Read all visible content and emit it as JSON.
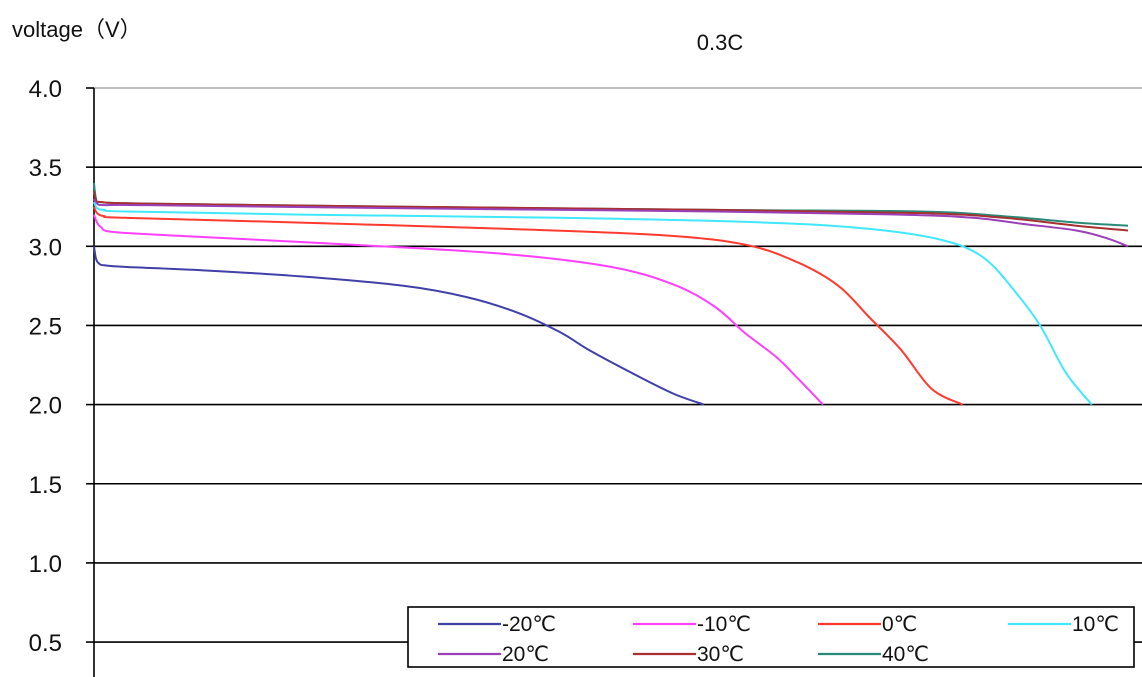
{
  "chart_data": {
    "type": "line",
    "title": "0.3C",
    "ylabel": "voltage（V）",
    "xlabel": "",
    "ylim": [
      0.3,
      4.0
    ],
    "xlim": [
      0,
      100
    ],
    "yticks": [
      4.0,
      3.5,
      3.0,
      2.5,
      2.0,
      1.5,
      1.0,
      0.5
    ],
    "ytick_labels": [
      "4.0",
      "3.5",
      "3.0",
      "2.5",
      "2.0",
      "1.5",
      "1.0",
      "0.5"
    ],
    "grid": "horizontal",
    "legend_position": "bottom-right",
    "series": [
      {
        "name": "-20℃",
        "color": "#4040a8",
        "x": [
          0,
          0.2,
          0.5,
          1,
          3,
          10,
          20,
          30,
          36,
          41,
          45,
          48,
          52,
          56,
          59
        ],
        "y": [
          3.0,
          2.92,
          2.89,
          2.88,
          2.87,
          2.85,
          2.81,
          2.75,
          2.68,
          2.58,
          2.46,
          2.34,
          2.2,
          2.07,
          2.0
        ]
      },
      {
        "name": "-10℃",
        "color": "#ff40ff",
        "x": [
          0,
          0.3,
          0.7,
          2,
          10,
          25,
          40,
          50,
          56,
          60,
          63,
          66,
          68,
          70.5
        ],
        "y": [
          3.2,
          3.15,
          3.12,
          3.09,
          3.06,
          3.01,
          2.95,
          2.87,
          2.76,
          2.62,
          2.45,
          2.3,
          2.17,
          2.0
        ]
      },
      {
        "name": "0℃",
        "color": "#ff3b30",
        "x": [
          0,
          0.3,
          1,
          3,
          20,
          40,
          55,
          63,
          68,
          72,
          75,
          78,
          81,
          84
        ],
        "y": [
          3.25,
          3.21,
          3.19,
          3.18,
          3.15,
          3.11,
          3.07,
          3.01,
          2.9,
          2.75,
          2.55,
          2.35,
          2.1,
          2.0
        ]
      },
      {
        "name": "10℃",
        "color": "#40e8ff",
        "x": [
          0,
          0.3,
          1,
          3,
          20,
          45,
          65,
          75,
          82,
          86,
          89,
          91.5,
          94,
          96.5
        ],
        "y": [
          3.28,
          3.24,
          3.23,
          3.22,
          3.2,
          3.18,
          3.15,
          3.11,
          3.04,
          2.93,
          2.72,
          2.5,
          2.2,
          2.0
        ]
      },
      {
        "name": "20℃",
        "color": "#9a40b8",
        "x": [
          0,
          0.3,
          1,
          5,
          30,
          60,
          78,
          85,
          90,
          95,
          98,
          100
        ],
        "y": [
          3.3,
          3.27,
          3.26,
          3.26,
          3.24,
          3.22,
          3.2,
          3.18,
          3.14,
          3.1,
          3.05,
          3.0
        ]
      },
      {
        "name": "30℃",
        "color": "#a83030",
        "x": [
          0,
          0.2,
          0.6,
          5,
          30,
          60,
          80,
          88,
          95,
          100
        ],
        "y": [
          3.35,
          3.29,
          3.28,
          3.27,
          3.25,
          3.23,
          3.21,
          3.18,
          3.13,
          3.1
        ]
      },
      {
        "name": "40℃",
        "color": "#2a8a78",
        "x": [
          0,
          0.2,
          0.6,
          5,
          30,
          60,
          80,
          88,
          95,
          100
        ],
        "y": [
          3.4,
          3.3,
          3.28,
          3.27,
          3.25,
          3.23,
          3.22,
          3.19,
          3.15,
          3.13
        ]
      }
    ]
  }
}
